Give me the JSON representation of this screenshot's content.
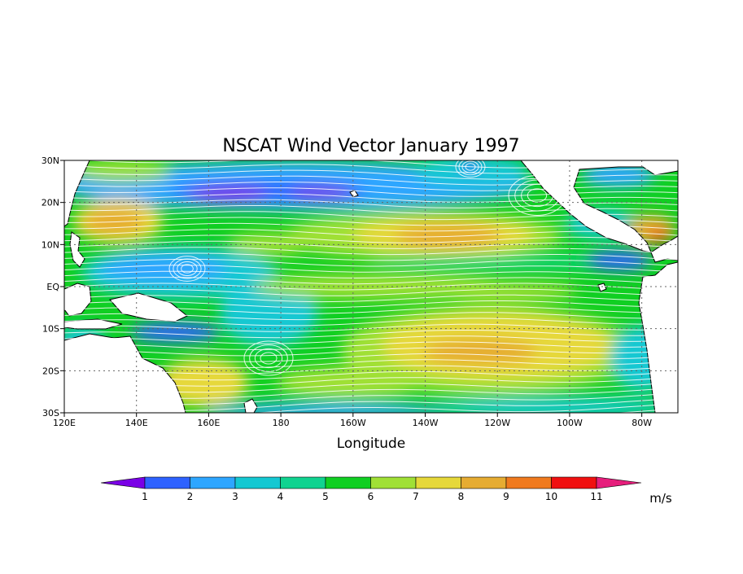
{
  "title": "NSCAT Wind Vector  January 1997",
  "x_axis": {
    "label": "Longitude",
    "ticks": [
      "120E",
      "140E",
      "160E",
      "180",
      "160W",
      "140W",
      "120W",
      "100W",
      "80W"
    ]
  },
  "y_axis": {
    "ticks": [
      "30N",
      "20N",
      "10N",
      "EQ",
      "10S",
      "20S",
      "30S"
    ]
  },
  "colorbar": {
    "unit": "m/s",
    "labels": [
      "1",
      "2",
      "3",
      "4",
      "5",
      "6",
      "7",
      "8",
      "9",
      "10",
      "11"
    ],
    "colors": [
      "#7a00e6",
      "#2e62ff",
      "#2ea6ff",
      "#14c8d2",
      "#10d390",
      "#10cf22",
      "#a0e036",
      "#e6d83a",
      "#e6ac32",
      "#f07a1e",
      "#f01010",
      "#e61e7c"
    ]
  },
  "map": {
    "extent": {
      "lon_min": 120,
      "lon_max": 290,
      "lat_min": -30,
      "lat_max": 30
    },
    "background_color": "#10cf22",
    "streamline_color": "#ffffff",
    "coastline_color": "#000000"
  }
}
